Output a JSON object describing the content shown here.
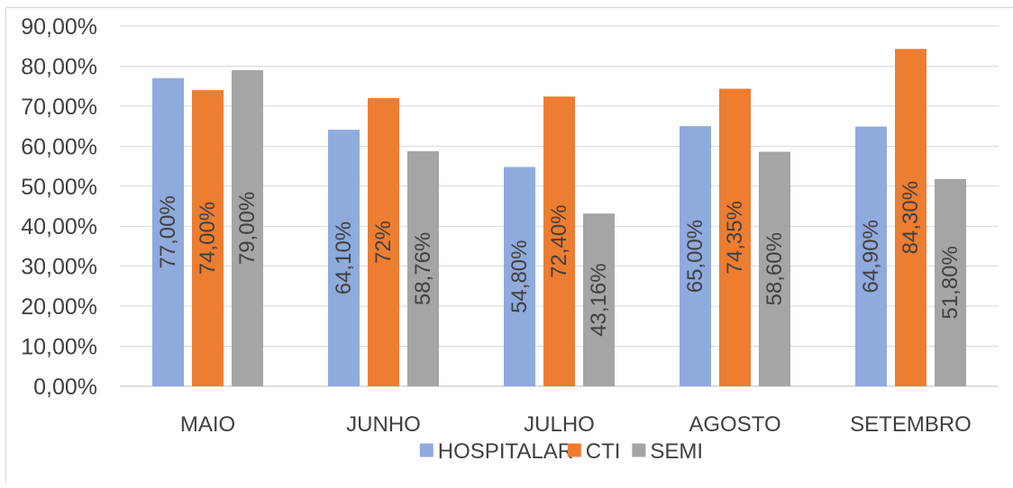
{
  "chart_data": {
    "type": "bar",
    "title": "",
    "xlabel": "",
    "ylabel": "",
    "ylim": [
      0,
      90
    ],
    "y_ticks": [
      "0,00%",
      "10,00%",
      "20,00%",
      "30,00%",
      "40,00%",
      "50,00%",
      "60,00%",
      "70,00%",
      "80,00%",
      "90,00%"
    ],
    "categories": [
      "MAIO",
      "JUNHO",
      "JULHO",
      "AGOSTO",
      "SETEMBRO"
    ],
    "grid": true,
    "legend_position": "bottom",
    "series": [
      {
        "name": "HOSPITALAR",
        "color": "#8faadc",
        "values": [
          77.0,
          64.1,
          54.8,
          65.0,
          64.9
        ],
        "labels": [
          "77,00%",
          "64,10%",
          "54,80%",
          "65,00%",
          "64,90%"
        ]
      },
      {
        "name": "CTI",
        "color": "#ed7d31",
        "values": [
          74.0,
          72.0,
          72.4,
          74.35,
          84.3
        ],
        "labels": [
          "74,00%",
          "72%",
          "72,40%",
          "74,35%",
          "84,30%"
        ]
      },
      {
        "name": "SEMI",
        "color": "#a5a5a5",
        "values": [
          79.0,
          58.76,
          43.16,
          58.6,
          51.8
        ],
        "labels": [
          "79,00%",
          "58,76%",
          "43,16%",
          "58,60%",
          "51,80%"
        ]
      }
    ]
  }
}
